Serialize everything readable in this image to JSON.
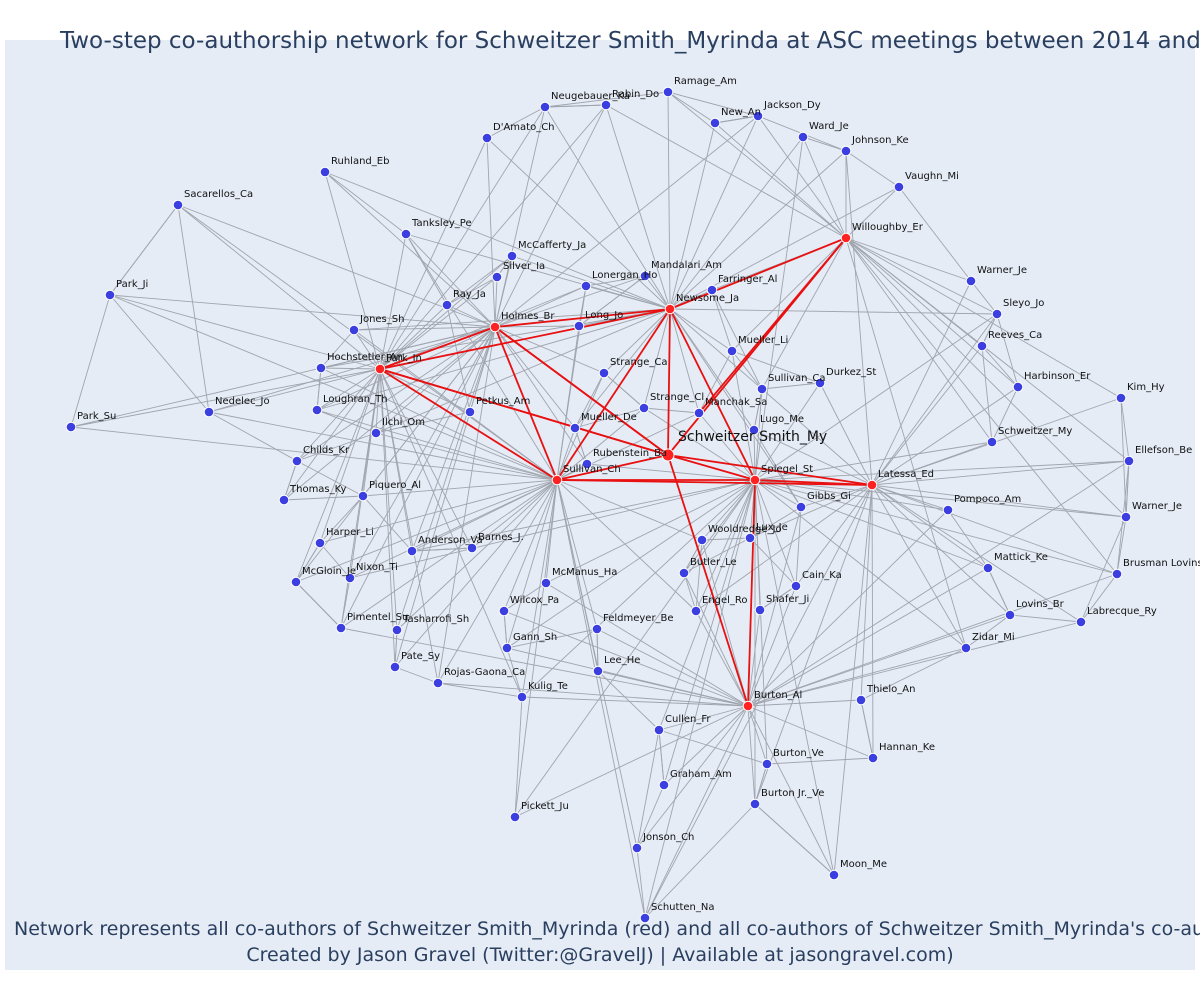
{
  "title": "Two-step co-authorship network for Schweitzer Smith_Myrinda at ASC meetings between 2014 and",
  "captions": [
    "Network represents all co-authors of Schweitzer Smith_Myrinda (red) and all co-authors of Schweitzer Smith_Myrinda's co-autho",
    "Created by Jason Gravel (Twitter:@GravelJ) | Available at jasongravel.com)"
  ],
  "colors": {
    "ego": "#ff2222",
    "alter": "#3b3fe0",
    "edge_gray": "#a0a4ad",
    "edge_red": "#e81010",
    "background": "#e5ecf6"
  },
  "nodes": [
    {
      "id": "Schweitzer Smith_My",
      "group": "ego"
    },
    {
      "id": "Sullivan_Ch",
      "group": "coauthor"
    },
    {
      "id": "Newsome_Ja",
      "group": "coauthor"
    },
    {
      "id": "Holmes_Br",
      "group": "coauthor"
    },
    {
      "id": "Park_In",
      "group": "coauthor"
    },
    {
      "id": "Spiegel_St",
      "group": "coauthor"
    },
    {
      "id": "Latessa_Ed",
      "group": "coauthor"
    },
    {
      "id": "Burton_Al",
      "group": "coauthor"
    },
    {
      "id": "Willoughby_Er",
      "group": "coauthor"
    },
    {
      "id": "Ramage_Am",
      "group": "other"
    },
    {
      "id": "Rabin_Do",
      "group": "other"
    },
    {
      "id": "Neugebauer_Ka",
      "group": "other"
    },
    {
      "id": "New_An",
      "group": "other"
    },
    {
      "id": "Jackson_Dy",
      "group": "other"
    },
    {
      "id": "Ward_Je",
      "group": "other"
    },
    {
      "id": "Johnson_Ke",
      "group": "other"
    },
    {
      "id": "D'Amato_Ch",
      "group": "other"
    },
    {
      "id": "Vaughn_Mi",
      "group": "other"
    },
    {
      "id": "Ruhland_Eb",
      "group": "other"
    },
    {
      "id": "Sacarellos_Ca",
      "group": "other"
    },
    {
      "id": "Tanksley_Pe",
      "group": "other"
    },
    {
      "id": "McCafferty_Ja",
      "group": "other"
    },
    {
      "id": "Silver_Ia",
      "group": "other"
    },
    {
      "id": "Mandalari_Am",
      "group": "other"
    },
    {
      "id": "Lonergan_Ho",
      "group": "other"
    },
    {
      "id": "Farringer_Al",
      "group": "other"
    },
    {
      "id": "Warner_Je",
      "group": "other"
    },
    {
      "id": "Park_Ji",
      "group": "other"
    },
    {
      "id": "Ray_Ja",
      "group": "other"
    },
    {
      "id": "Sleyo_Jo",
      "group": "other"
    },
    {
      "id": "Jones_Sh",
      "group": "other"
    },
    {
      "id": "Long_Jo",
      "group": "other"
    },
    {
      "id": "Reeves_Ca",
      "group": "other"
    },
    {
      "id": "Mueller_Li",
      "group": "other"
    },
    {
      "id": "Hochstetler_An",
      "group": "other"
    },
    {
      "id": "Strange_Ca",
      "group": "other"
    },
    {
      "id": "Harbinson_Er",
      "group": "other"
    },
    {
      "id": "Durkez_St",
      "group": "other"
    },
    {
      "id": "Sullivan_Ca",
      "group": "other"
    },
    {
      "id": "Kim_Hy",
      "group": "other"
    },
    {
      "id": "Strange_Cl",
      "group": "other"
    },
    {
      "id": "Loughran_Th",
      "group": "other"
    },
    {
      "id": "Nedelec_Jo",
      "group": "other"
    },
    {
      "id": "Petkus_Am",
      "group": "other"
    },
    {
      "id": "Manchak_Sa",
      "group": "other"
    },
    {
      "id": "Mueller_De",
      "group": "other"
    },
    {
      "id": "Park_Su",
      "group": "other"
    },
    {
      "id": "Ilchi_Om",
      "group": "other"
    },
    {
      "id": "Lugo_Me",
      "group": "other"
    },
    {
      "id": "Schweitzer_My",
      "group": "other"
    },
    {
      "id": "Rubenstein_Ba",
      "group": "other"
    },
    {
      "id": "Childs_Kr",
      "group": "other"
    },
    {
      "id": "Ellefson_Be",
      "group": "other"
    },
    {
      "id": "Thomas_Ky",
      "group": "other"
    },
    {
      "id": "Piquero_Al",
      "group": "other"
    },
    {
      "id": "Gibbs_Gi",
      "group": "other"
    },
    {
      "id": "Pompoco_Am",
      "group": "other"
    },
    {
      "id": "Warner_Je2",
      "group": "other",
      "label": "Warner_Je"
    },
    {
      "id": "Wooldredge_Jo",
      "group": "other"
    },
    {
      "id": "Lux_Je",
      "group": "other"
    },
    {
      "id": "Harper_Li",
      "group": "other"
    },
    {
      "id": "Anderson_Va",
      "group": "other"
    },
    {
      "id": "Barnes_J.",
      "group": "other"
    },
    {
      "id": "Butler_Le",
      "group": "other"
    },
    {
      "id": "Nixon_Ti",
      "group": "other"
    },
    {
      "id": "McGloin_Je",
      "group": "other"
    },
    {
      "id": "McManus_Ha",
      "group": "other"
    },
    {
      "id": "Cain_Ka",
      "group": "other"
    },
    {
      "id": "Mattick_Ke",
      "group": "other"
    },
    {
      "id": "Brusman Lovins",
      "group": "other"
    },
    {
      "id": "Wilcox_Pa",
      "group": "other"
    },
    {
      "id": "Engel_Ro",
      "group": "other"
    },
    {
      "id": "Shafer_Ji",
      "group": "other"
    },
    {
      "id": "Lovins_Br",
      "group": "other"
    },
    {
      "id": "Labrecque_Ry",
      "group": "other"
    },
    {
      "id": "Pimentel_Su",
      "group": "other"
    },
    {
      "id": "Tasharrofi_Sh",
      "group": "other"
    },
    {
      "id": "Feldmeyer_Be",
      "group": "other"
    },
    {
      "id": "Gann_Sh",
      "group": "other"
    },
    {
      "id": "Zidar_Mi",
      "group": "other"
    },
    {
      "id": "Pate_Sy",
      "group": "other"
    },
    {
      "id": "Lee_He",
      "group": "other"
    },
    {
      "id": "Rojas-Gaona_Ca",
      "group": "other"
    },
    {
      "id": "Kulig_Te",
      "group": "other"
    },
    {
      "id": "Thielo_An",
      "group": "other"
    },
    {
      "id": "Cullen_Fr",
      "group": "other"
    },
    {
      "id": "Hannan_Ke",
      "group": "other"
    },
    {
      "id": "Burton_Ve",
      "group": "other"
    },
    {
      "id": "Graham_Am",
      "group": "other"
    },
    {
      "id": "Burton Jr._Ve",
      "group": "other"
    },
    {
      "id": "Pickett_Ju",
      "group": "other"
    },
    {
      "id": "Jonson_Ch",
      "group": "other"
    },
    {
      "id": "Moon_Me",
      "group": "other"
    },
    {
      "id": "Schutten_Na",
      "group": "other"
    }
  ]
}
